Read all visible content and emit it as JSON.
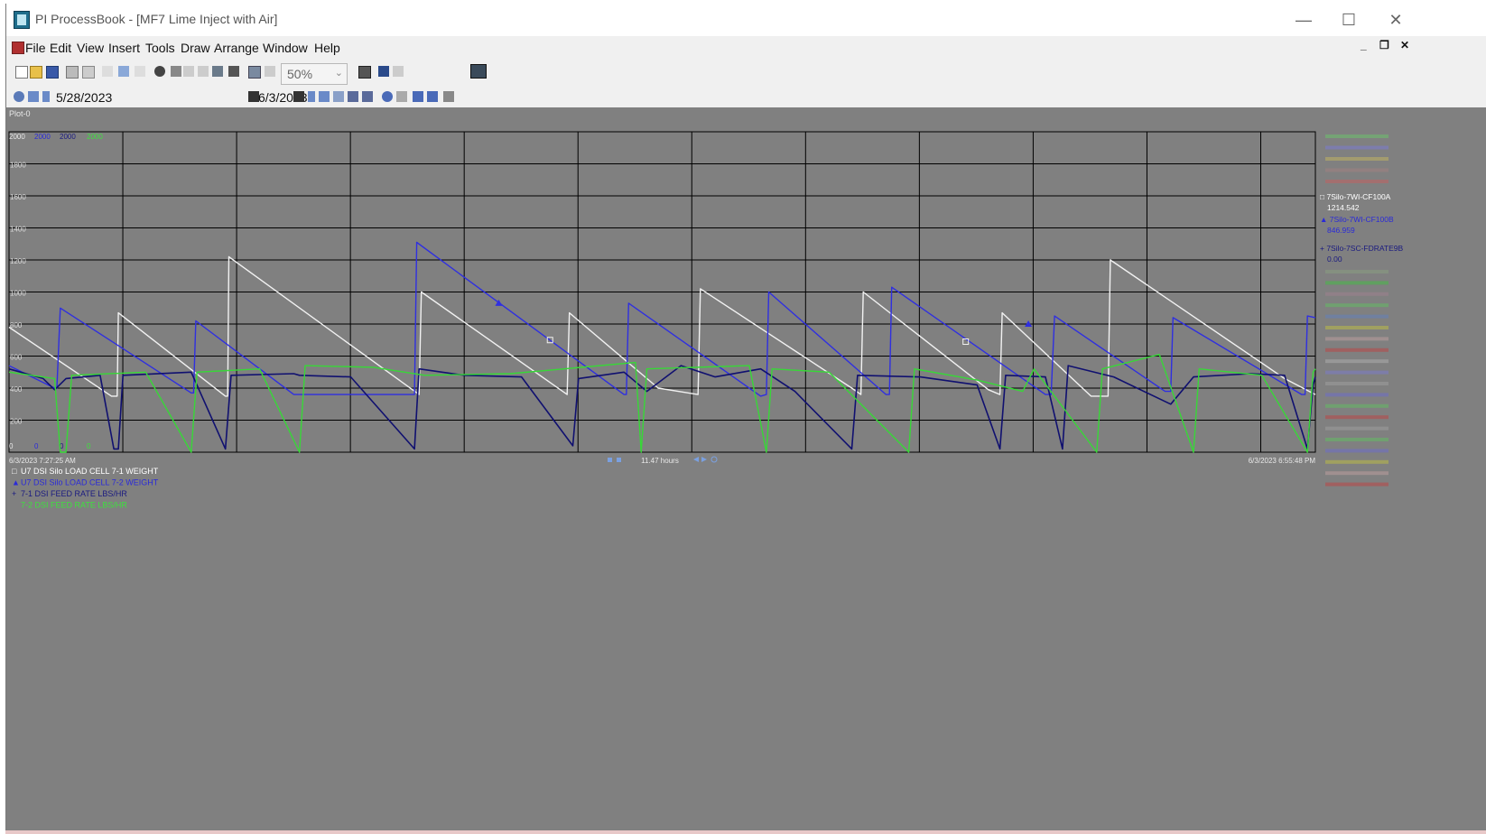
{
  "titlebar": {
    "title": "PI ProcessBook - [MF7 Lime Inject with Air]",
    "minimize_icon": "minimize-icon",
    "maximize_icon": "maximize-icon",
    "close_icon": "close-icon",
    "minimize_glyph": "—",
    "maximize_glyph": "☐",
    "close_glyph": "✕"
  },
  "menubar": {
    "items": [
      "File",
      "Edit",
      "View",
      "Insert",
      "Tools",
      "Draw",
      "Arrange",
      "Window",
      "Help"
    ],
    "mdi_minimize": "_",
    "mdi_restore": "❐",
    "mdi_close": "✕"
  },
  "toolbar": {
    "zoom_value": "50%",
    "zoom_arrow": "⌄"
  },
  "navbar": {
    "start_date": "5/28/2023",
    "end_date": "6/3/2023"
  },
  "plot": {
    "name_label": "Plot-0",
    "y_top_labels": [
      "2000",
      "2000",
      "2000",
      "2000"
    ],
    "y_bottom_labels": [
      "0",
      "0",
      "0",
      "0"
    ],
    "start_time": "6/3/2023 7:27:25 AM",
    "end_time": "6/3/2023 6:55:48 PM",
    "duration": "11.47 hours",
    "legend": [
      {
        "symbol": "□",
        "label": "U7 DSI Silo LOAD CELL 7-1 WEIGHT",
        "color": "#ffffff"
      },
      {
        "symbol": "▲",
        "label": "U7 DSI Silo LOAD CELL 7-2 WEIGHT",
        "color": "#2a2ad8"
      },
      {
        "symbol": "+",
        "label": "7-1 DSI FEED RATE LBS/HR",
        "color": "#1a1a80"
      },
      {
        "symbol": "",
        "label": "7-2 DSI FEED RATE LBS/HR",
        "color": "#3ee03e"
      }
    ],
    "right_legend": [
      {
        "symbol": "□",
        "label": "7Silo-7WI-CF100A",
        "value": "1214.542",
        "color": "#ffffff"
      },
      {
        "symbol": "▲",
        "label": "7Silo-7WI-CF100B",
        "value": "846.959",
        "color": "#2a2ad8"
      },
      {
        "symbol": "+",
        "label": "7Silo-7SC-FDRATE9B",
        "value": "0.00",
        "color": "#1a1a80"
      }
    ]
  },
  "chart_data": {
    "type": "line",
    "ylim": [
      0,
      2000
    ],
    "yticks": [
      0,
      200,
      400,
      600,
      800,
      1000,
      1200,
      1400,
      1600,
      1800,
      2000
    ],
    "xlim_hours": [
      0,
      11.47
    ],
    "series": [
      {
        "name": "U7 DSI Silo LOAD CELL 7-1 WEIGHT",
        "color": "#f2f2f2",
        "points": [
          [
            0.0,
            780
          ],
          [
            0.9,
            350
          ],
          [
            0.95,
            350
          ],
          [
            0.96,
            870
          ],
          [
            1.9,
            350
          ],
          [
            1.92,
            350
          ],
          [
            1.93,
            1220
          ],
          [
            3.6,
            360
          ],
          [
            3.62,
            1000
          ],
          [
            4.9,
            360
          ],
          [
            4.92,
            870
          ],
          [
            5.7,
            400
          ],
          [
            6.05,
            360
          ],
          [
            6.07,
            1020
          ],
          [
            7.4,
            400
          ],
          [
            7.48,
            360
          ],
          [
            7.5,
            1000
          ],
          [
            8.6,
            390
          ],
          [
            8.7,
            360
          ],
          [
            8.72,
            870
          ],
          [
            9.5,
            350
          ],
          [
            9.65,
            350
          ],
          [
            9.67,
            1200
          ],
          [
            11.2,
            460
          ],
          [
            11.47,
            360
          ]
        ]
      },
      {
        "name": "U7 DSI Silo LOAD CELL 7-2 WEIGHT",
        "color": "#2f2fe0",
        "points": [
          [
            0.0,
            540
          ],
          [
            0.4,
            400
          ],
          [
            0.42,
            400
          ],
          [
            0.45,
            900
          ],
          [
            1.6,
            370
          ],
          [
            1.62,
            370
          ],
          [
            1.64,
            820
          ],
          [
            2.5,
            360
          ],
          [
            2.55,
            360
          ],
          [
            3.56,
            360
          ],
          [
            3.58,
            1310
          ],
          [
            5.4,
            360
          ],
          [
            5.42,
            360
          ],
          [
            5.44,
            930
          ],
          [
            6.6,
            350
          ],
          [
            6.65,
            360
          ],
          [
            6.67,
            1000
          ],
          [
            7.7,
            360
          ],
          [
            7.73,
            360
          ],
          [
            7.75,
            1030
          ],
          [
            9.1,
            360
          ],
          [
            9.15,
            360
          ],
          [
            9.18,
            850
          ],
          [
            10.15,
            380
          ],
          [
            10.2,
            380
          ],
          [
            10.22,
            840
          ],
          [
            11.35,
            360
          ],
          [
            11.38,
            360
          ],
          [
            11.4,
            850
          ],
          [
            11.47,
            840
          ]
        ]
      },
      {
        "name": "7-1 DSI FEED RATE LBS/HR",
        "color": "#101070",
        "points": [
          [
            0.0,
            520
          ],
          [
            0.3,
            460
          ],
          [
            0.4,
            390
          ],
          [
            0.5,
            460
          ],
          [
            0.8,
            480
          ],
          [
            0.92,
            20
          ],
          [
            0.96,
            20
          ],
          [
            1.0,
            480
          ],
          [
            1.6,
            500
          ],
          [
            1.9,
            20
          ],
          [
            1.95,
            480
          ],
          [
            2.5,
            490
          ],
          [
            2.55,
            480
          ],
          [
            3.0,
            470
          ],
          [
            3.56,
            20
          ],
          [
            3.6,
            520
          ],
          [
            4.0,
            480
          ],
          [
            4.5,
            470
          ],
          [
            4.95,
            40
          ],
          [
            5.0,
            460
          ],
          [
            5.4,
            500
          ],
          [
            5.6,
            380
          ],
          [
            5.9,
            540
          ],
          [
            6.2,
            470
          ],
          [
            6.6,
            520
          ],
          [
            6.9,
            380
          ],
          [
            7.4,
            20
          ],
          [
            7.45,
            480
          ],
          [
            8.0,
            470
          ],
          [
            8.5,
            420
          ],
          [
            8.7,
            20
          ],
          [
            8.75,
            480
          ],
          [
            9.1,
            470
          ],
          [
            9.25,
            20
          ],
          [
            9.3,
            540
          ],
          [
            9.7,
            470
          ],
          [
            10.2,
            300
          ],
          [
            10.4,
            470
          ],
          [
            10.9,
            490
          ],
          [
            11.2,
            480
          ],
          [
            11.4,
            20
          ],
          [
            11.45,
            420
          ],
          [
            11.47,
            470
          ]
        ]
      },
      {
        "name": "7-2 DSI FEED RATE LBS/HR",
        "color": "#37d837",
        "points": [
          [
            0.0,
            500
          ],
          [
            0.4,
            460
          ],
          [
            0.45,
            0
          ],
          [
            0.5,
            0
          ],
          [
            0.55,
            480
          ],
          [
            1.2,
            500
          ],
          [
            1.6,
            0
          ],
          [
            1.65,
            500
          ],
          [
            2.2,
            520
          ],
          [
            2.55,
            0
          ],
          [
            2.6,
            540
          ],
          [
            3.2,
            530
          ],
          [
            3.65,
            480
          ],
          [
            4.4,
            490
          ],
          [
            5.5,
            560
          ],
          [
            5.55,
            0
          ],
          [
            5.6,
            520
          ],
          [
            6.5,
            540
          ],
          [
            6.65,
            0
          ],
          [
            6.7,
            520
          ],
          [
            7.2,
            500
          ],
          [
            7.9,
            0
          ],
          [
            7.95,
            520
          ],
          [
            8.5,
            450
          ],
          [
            8.9,
            380
          ],
          [
            9.0,
            520
          ],
          [
            9.55,
            0
          ],
          [
            9.6,
            520
          ],
          [
            10.1,
            610
          ],
          [
            10.4,
            0
          ],
          [
            10.45,
            520
          ],
          [
            11.0,
            480
          ],
          [
            11.4,
            0
          ],
          [
            11.45,
            500
          ],
          [
            11.47,
            520
          ]
        ]
      }
    ]
  }
}
